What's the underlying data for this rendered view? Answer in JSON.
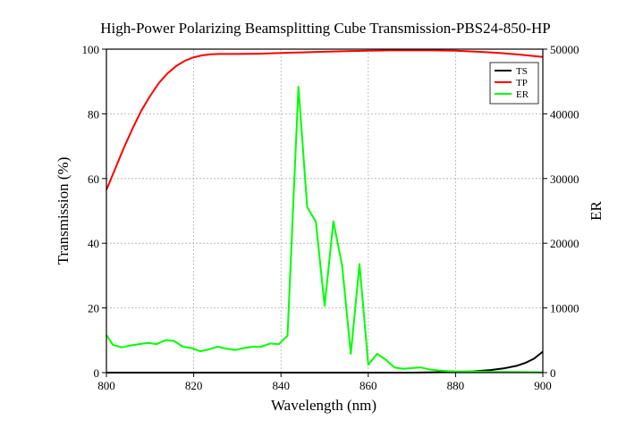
{
  "chart_data": {
    "type": "line",
    "title": "High-Power Polarizing Beamsplitting Cube Transmission-PBS24-850-HP",
    "xlabel": "Wavelength (nm)",
    "ylabel": "Transmission (%)",
    "y2label": "ER",
    "xlim": [
      800,
      900
    ],
    "ylim": [
      0,
      100
    ],
    "y2lim": [
      0,
      50000
    ],
    "x_ticks": [
      800,
      820,
      840,
      860,
      880,
      900
    ],
    "y_ticks": [
      0,
      20,
      40,
      60,
      80,
      100
    ],
    "y2_ticks": [
      0,
      10000,
      20000,
      30000,
      40000,
      50000
    ],
    "grid": true,
    "legend_position": "top-right",
    "series": [
      {
        "name": "TS",
        "axis": "left",
        "color": "#000000",
        "x": [
          800,
          810,
          820,
          830,
          840,
          850,
          860,
          870,
          875,
          880,
          884,
          888,
          891,
          894,
          896,
          898,
          900
        ],
        "y": [
          0,
          0,
          0,
          0,
          0,
          0,
          0,
          0,
          0.1,
          0.2,
          0.4,
          0.8,
          1.3,
          2.1,
          3.0,
          4.3,
          6.5
        ]
      },
      {
        "name": "TP",
        "axis": "left",
        "color": "#ff0000",
        "x": [
          800,
          802,
          804,
          806,
          808,
          810,
          812,
          814,
          816,
          818,
          820,
          822,
          824,
          826,
          830,
          835,
          840,
          845,
          850,
          855,
          860,
          865,
          870,
          875,
          880,
          885,
          890,
          895,
          900
        ],
        "y": [
          56.5,
          63,
          69.5,
          75.5,
          81,
          85.5,
          89.5,
          92.5,
          94.8,
          96.4,
          97.5,
          98.1,
          98.4,
          98.5,
          98.5,
          98.6,
          98.8,
          99.0,
          99.2,
          99.4,
          99.5,
          99.6,
          99.6,
          99.6,
          99.5,
          99.2,
          98.8,
          98.3,
          97.6
        ]
      },
      {
        "name": "ER",
        "axis": "right",
        "color": "#00ff00",
        "x": [
          800,
          801.5,
          803.5,
          805.5,
          807.5,
          809.5,
          811.5,
          813.5,
          815.5,
          817.5,
          819.5,
          821.5,
          823.5,
          825.5,
          827.5,
          829.5,
          831.5,
          833.5,
          835.5,
          837.5,
          839.5,
          841.5,
          844,
          846,
          848,
          850,
          852,
          854,
          856,
          858,
          860,
          862,
          864,
          866,
          868,
          870,
          872,
          874,
          876,
          878,
          880,
          885,
          890,
          895,
          900
        ],
        "y": [
          5800,
          4300,
          3900,
          4200,
          4400,
          4600,
          4400,
          5000,
          4900,
          4000,
          3800,
          3300,
          3600,
          4000,
          3700,
          3500,
          3800,
          4000,
          4000,
          4500,
          4400,
          5700,
          44200,
          25600,
          23300,
          10300,
          23400,
          16600,
          2900,
          16800,
          1200,
          2900,
          2000,
          800,
          600,
          700,
          800,
          500,
          350,
          250,
          200,
          150,
          100,
          80,
          50
        ]
      }
    ]
  }
}
